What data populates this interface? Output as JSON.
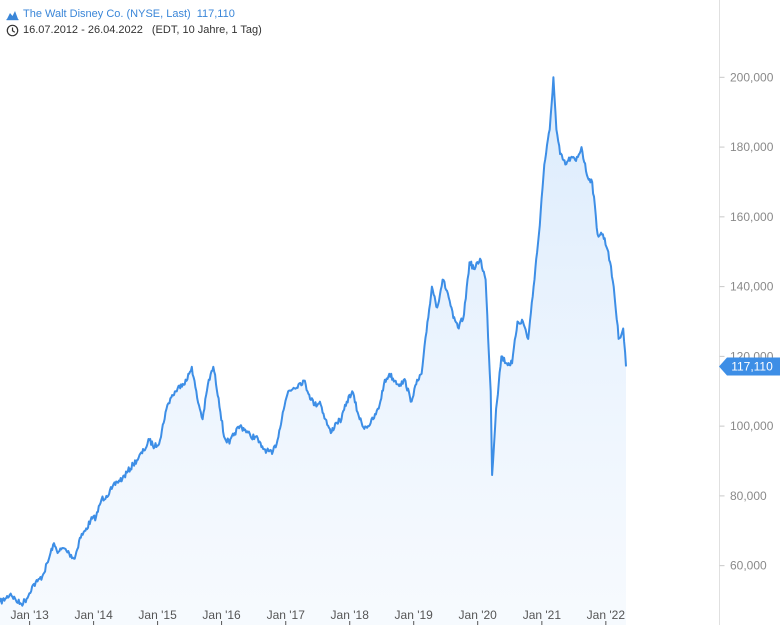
{
  "header": {
    "instrument": "The Walt Disney Co. (NYSE, Last)",
    "last_value": "117,110",
    "range": "16.07.2012 - 26.04.2022",
    "meta": "(EDT, 10 Jahre, 1 Tag)",
    "chart_icon": "mountain-chart-icon",
    "clock_icon": "clock-icon"
  },
  "chart_data": {
    "type": "area",
    "title": "",
    "xlabel": "",
    "ylabel": "",
    "ylim": [
      47,
      215
    ],
    "x_range": [
      "2012-07-16",
      "2022-04-26"
    ],
    "grid": false,
    "legend": "none",
    "line_color": "#3d8ee6",
    "fill_color": "#e6f1fd",
    "y_ticks": [
      {
        "value": 60,
        "label": "60,000"
      },
      {
        "value": 80,
        "label": "80,000"
      },
      {
        "value": 100,
        "label": "100,000"
      },
      {
        "value": 120,
        "label": "120,000"
      },
      {
        "value": 140,
        "label": "140,000"
      },
      {
        "value": 160,
        "label": "160,000"
      },
      {
        "value": 180,
        "label": "180,000"
      },
      {
        "value": 200,
        "label": "200,000"
      }
    ],
    "x_ticks": [
      {
        "date": "2013-01-01",
        "label": "Jan '13"
      },
      {
        "date": "2014-01-01",
        "label": "Jan '14"
      },
      {
        "date": "2015-01-01",
        "label": "Jan '15"
      },
      {
        "date": "2016-01-01",
        "label": "Jan '16"
      },
      {
        "date": "2017-01-01",
        "label": "Jan '17"
      },
      {
        "date": "2018-01-01",
        "label": "Jan '18"
      },
      {
        "date": "2019-01-01",
        "label": "Jan '19"
      },
      {
        "date": "2020-01-01",
        "label": "Jan '20"
      },
      {
        "date": "2021-01-01",
        "label": "Jan '21"
      },
      {
        "date": "2022-01-01",
        "label": "Jan '22"
      }
    ],
    "last": {
      "value": 117.11,
      "label": "117,110"
    },
    "series": [
      {
        "x": [
          "2012-07-16",
          "2012-08-15",
          "2012-09-15",
          "2012-10-15",
          "2012-11-15",
          "2012-12-15",
          "2013-01-15",
          "2013-02-15",
          "2013-03-15",
          "2013-04-15",
          "2013-05-15",
          "2013-06-15",
          "2013-07-15",
          "2013-08-15",
          "2013-09-15",
          "2013-10-15",
          "2013-11-15",
          "2013-12-15",
          "2014-01-15",
          "2014-02-15",
          "2014-03-15",
          "2014-04-15",
          "2014-05-15",
          "2014-06-15",
          "2014-07-15",
          "2014-08-15",
          "2014-09-15",
          "2014-10-15",
          "2014-11-15",
          "2014-12-15",
          "2015-01-15",
          "2015-02-15",
          "2015-03-15",
          "2015-04-15",
          "2015-05-15",
          "2015-06-15",
          "2015-07-15",
          "2015-08-15",
          "2015-09-15",
          "2015-10-15",
          "2015-11-15",
          "2015-12-15",
          "2016-01-15",
          "2016-02-15",
          "2016-03-15",
          "2016-04-15",
          "2016-05-15",
          "2016-06-15",
          "2016-07-15",
          "2016-08-15",
          "2016-09-15",
          "2016-10-15",
          "2016-11-15",
          "2016-12-15",
          "2017-01-15",
          "2017-02-15",
          "2017-03-15",
          "2017-04-15",
          "2017-05-15",
          "2017-06-15",
          "2017-07-15",
          "2017-08-15",
          "2017-09-15",
          "2017-10-15",
          "2017-11-15",
          "2017-12-15",
          "2018-01-15",
          "2018-02-15",
          "2018-03-15",
          "2018-04-15",
          "2018-05-15",
          "2018-06-15",
          "2018-07-15",
          "2018-08-15",
          "2018-09-15",
          "2018-10-15",
          "2018-11-15",
          "2018-12-15",
          "2019-01-15",
          "2019-02-15",
          "2019-03-15",
          "2019-04-15",
          "2019-05-15",
          "2019-06-15",
          "2019-07-15",
          "2019-08-15",
          "2019-09-15",
          "2019-10-15",
          "2019-11-15",
          "2019-12-15",
          "2020-01-15",
          "2020-02-15",
          "2020-03-15",
          "2020-03-23",
          "2020-04-15",
          "2020-05-15",
          "2020-06-15",
          "2020-07-15",
          "2020-08-15",
          "2020-09-15",
          "2020-10-15",
          "2020-11-15",
          "2020-12-15",
          "2021-01-15",
          "2021-02-15",
          "2021-03-08",
          "2021-03-25",
          "2021-04-15",
          "2021-05-15",
          "2021-06-15",
          "2021-07-15",
          "2021-08-15",
          "2021-09-15",
          "2021-10-15",
          "2021-11-15",
          "2021-12-15",
          "2022-01-15",
          "2022-02-15",
          "2022-03-15",
          "2022-04-10",
          "2022-04-26"
        ],
        "values": [
          49.5,
          50.5,
          52,
          50,
          49,
          50.5,
          54,
          55.5,
          57,
          61,
          66,
          64,
          65,
          63.5,
          62,
          68,
          70,
          73,
          74,
          79,
          80,
          82,
          84,
          85,
          87,
          89,
          91,
          93,
          96,
          94,
          96,
          104,
          108,
          110,
          112,
          113,
          117,
          108,
          102,
          112,
          117,
          108,
          97,
          95,
          98,
          100,
          99,
          97,
          97,
          94,
          93,
          92,
          96,
          104,
          110,
          111,
          112,
          113,
          109,
          106,
          107,
          102,
          98,
          101,
          102,
          107,
          110,
          104,
          100,
          100,
          102,
          105,
          112,
          115,
          113,
          112,
          113,
          107,
          112,
          115,
          127,
          140,
          134,
          142,
          138,
          131,
          128,
          132,
          147,
          145,
          148,
          142,
          110,
          86,
          105,
          120,
          118,
          118,
          130,
          130,
          125,
          140,
          155,
          175,
          185,
          200,
          185,
          178,
          175,
          177,
          176,
          180,
          172,
          170,
          155,
          155,
          150,
          140,
          125,
          128,
          117.11
        ]
      }
    ]
  }
}
